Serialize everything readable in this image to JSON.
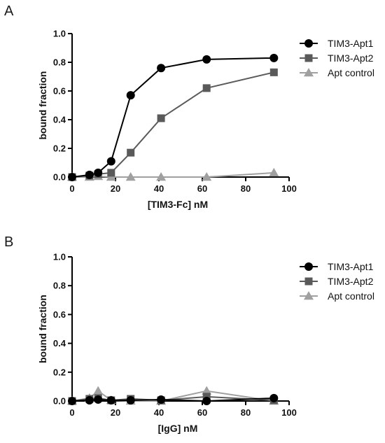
{
  "chart_data": [
    {
      "panel": "A",
      "type": "line",
      "xlabel": "[TIM3-Fc] nM",
      "ylabel": "bound fraction",
      "xlim": [
        0,
        100
      ],
      "ylim": [
        0,
        1.0
      ],
      "xticks": [
        "0",
        "20",
        "40",
        "60",
        "80",
        "100"
      ],
      "yticks": [
        "0.0",
        "0.2",
        "0.4",
        "0.6",
        "0.8",
        "1.0"
      ],
      "grid": false,
      "legend": "top-right",
      "series": [
        {
          "name": "TIM3-Apt1",
          "marker": "circle",
          "color": "#000000",
          "x": [
            0,
            8,
            12,
            18,
            27,
            41,
            62,
            93
          ],
          "y": [
            0.0,
            0.015,
            0.03,
            0.11,
            0.57,
            0.76,
            0.82,
            0.83
          ]
        },
        {
          "name": "TIM3-Apt2",
          "marker": "square",
          "color": "#5a5a5a",
          "x": [
            0,
            8,
            12,
            18,
            27,
            41,
            62,
            93
          ],
          "y": [
            0.0,
            0.01,
            0.02,
            0.03,
            0.17,
            0.41,
            0.62,
            0.73
          ]
        },
        {
          "name": "Apt control",
          "marker": "triangle",
          "color": "#a0a0a0",
          "x": [
            0,
            8,
            12,
            18,
            27,
            41,
            62,
            93
          ],
          "y": [
            0.0,
            0.0,
            0.005,
            0.0,
            0.0,
            0.0,
            0.0,
            0.03
          ]
        }
      ]
    },
    {
      "panel": "B",
      "type": "line",
      "xlabel": "[IgG] nM",
      "ylabel": "bound fraction",
      "xlim": [
        0,
        100
      ],
      "ylim": [
        0,
        1.0
      ],
      "xticks": [
        "0",
        "20",
        "40",
        "60",
        "80",
        "100"
      ],
      "yticks": [
        "0.0",
        "0.2",
        "0.4",
        "0.6",
        "0.8",
        "1.0"
      ],
      "grid": false,
      "legend": "top-right",
      "series": [
        {
          "name": "TIM3-Apt1",
          "marker": "circle",
          "color": "#000000",
          "x": [
            0,
            8,
            12,
            18,
            27,
            41,
            62,
            93
          ],
          "y": [
            0.0,
            0.005,
            0.01,
            0.005,
            0.005,
            0.01,
            0.0,
            0.02
          ]
        },
        {
          "name": "TIM3-Apt2",
          "marker": "square",
          "color": "#5a5a5a",
          "x": [
            0,
            8,
            12,
            18,
            27,
            41,
            62,
            93
          ],
          "y": [
            0.0,
            0.015,
            0.02,
            0.005,
            0.015,
            0.005,
            0.03,
            0.005
          ]
        },
        {
          "name": "Apt control",
          "marker": "triangle",
          "color": "#a0a0a0",
          "x": [
            0,
            8,
            12,
            18,
            27,
            41,
            62,
            93
          ],
          "y": [
            0.0,
            0.02,
            0.07,
            0.005,
            0.0,
            0.0,
            0.07,
            0.0
          ]
        }
      ]
    }
  ]
}
